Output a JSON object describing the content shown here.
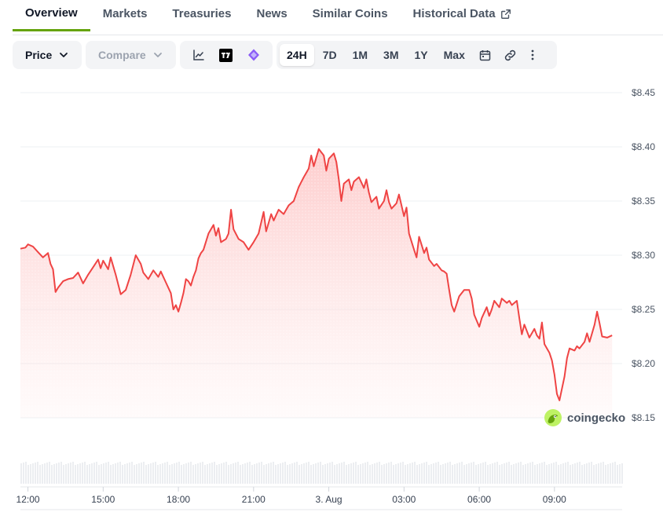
{
  "tabs": [
    "Overview",
    "Markets",
    "Treasuries",
    "News",
    "Similar Coins",
    "Historical Data"
  ],
  "toolbar": {
    "price_label": "Price",
    "compare_label": "Compare",
    "ranges": [
      "24H",
      "7D",
      "1M",
      "3M",
      "1Y",
      "Max"
    ],
    "active_range": "24H"
  },
  "watermark": "coingecko",
  "colors": {
    "line": "#ef4444",
    "area_top": "#fecaca",
    "active_tab_underline": "#65a30d"
  },
  "chart_data": {
    "type": "area",
    "ylim": [
      8.15,
      8.45
    ],
    "yticks": [
      "$8.45",
      "$8.40",
      "$8.35",
      "$8.30",
      "$8.25",
      "$8.20",
      "$8.15"
    ],
    "yvalues": [
      8.45,
      8.4,
      8.35,
      8.3,
      8.25,
      8.2,
      8.15
    ],
    "xticks": [
      "12:00",
      "15:00",
      "18:00",
      "21:00",
      "3. Aug",
      "03:00",
      "06:00",
      "09:00"
    ],
    "x_start_hour": 11.7,
    "x_end_hour": 35.7,
    "points": [
      [
        11.7,
        8.306
      ],
      [
        11.9,
        8.307
      ],
      [
        12.0,
        8.31
      ],
      [
        12.2,
        8.308
      ],
      [
        12.4,
        8.303
      ],
      [
        12.6,
        8.298
      ],
      [
        12.8,
        8.302
      ],
      [
        12.9,
        8.292
      ],
      [
        13.0,
        8.287
      ],
      [
        13.1,
        8.266
      ],
      [
        13.2,
        8.27
      ],
      [
        13.4,
        8.276
      ],
      [
        13.6,
        8.278
      ],
      [
        13.8,
        8.279
      ],
      [
        14.0,
        8.284
      ],
      [
        14.2,
        8.274
      ],
      [
        14.4,
        8.282
      ],
      [
        14.6,
        8.289
      ],
      [
        14.8,
        8.296
      ],
      [
        14.9,
        8.288
      ],
      [
        15.0,
        8.295
      ],
      [
        15.2,
        8.287
      ],
      [
        15.3,
        8.298
      ],
      [
        15.5,
        8.282
      ],
      [
        15.7,
        8.264
      ],
      [
        15.9,
        8.268
      ],
      [
        16.1,
        8.282
      ],
      [
        16.3,
        8.3
      ],
      [
        16.5,
        8.292
      ],
      [
        16.6,
        8.284
      ],
      [
        16.8,
        8.278
      ],
      [
        17.0,
        8.286
      ],
      [
        17.2,
        8.28
      ],
      [
        17.3,
        8.285
      ],
      [
        17.5,
        8.275
      ],
      [
        17.6,
        8.27
      ],
      [
        17.7,
        8.265
      ],
      [
        17.8,
        8.25
      ],
      [
        17.9,
        8.254
      ],
      [
        18.0,
        8.248
      ],
      [
        18.1,
        8.256
      ],
      [
        18.2,
        8.265
      ],
      [
        18.3,
        8.278
      ],
      [
        18.4,
        8.276
      ],
      [
        18.5,
        8.272
      ],
      [
        18.6,
        8.28
      ],
      [
        18.7,
        8.286
      ],
      [
        18.8,
        8.297
      ],
      [
        18.9,
        8.302
      ],
      [
        19.0,
        8.305
      ],
      [
        19.2,
        8.32
      ],
      [
        19.4,
        8.328
      ],
      [
        19.5,
        8.318
      ],
      [
        19.6,
        8.325
      ],
      [
        19.7,
        8.312
      ],
      [
        19.9,
        8.315
      ],
      [
        20.0,
        8.32
      ],
      [
        20.1,
        8.342
      ],
      [
        20.2,
        8.324
      ],
      [
        20.4,
        8.315
      ],
      [
        20.6,
        8.312
      ],
      [
        20.8,
        8.305
      ],
      [
        21.0,
        8.312
      ],
      [
        21.2,
        8.32
      ],
      [
        21.4,
        8.34
      ],
      [
        21.5,
        8.322
      ],
      [
        21.7,
        8.338
      ],
      [
        21.8,
        8.332
      ],
      [
        22.0,
        8.342
      ],
      [
        22.2,
        8.338
      ],
      [
        22.4,
        8.346
      ],
      [
        22.6,
        8.35
      ],
      [
        22.8,
        8.363
      ],
      [
        23.0,
        8.372
      ],
      [
        23.2,
        8.38
      ],
      [
        23.3,
        8.392
      ],
      [
        23.4,
        8.382
      ],
      [
        23.6,
        8.398
      ],
      [
        23.8,
        8.392
      ],
      [
        23.9,
        8.378
      ],
      [
        24.0,
        8.389
      ],
      [
        24.2,
        8.394
      ],
      [
        24.3,
        8.386
      ],
      [
        24.4,
        8.37
      ],
      [
        24.5,
        8.35
      ],
      [
        24.6,
        8.366
      ],
      [
        24.8,
        8.37
      ],
      [
        24.9,
        8.36
      ],
      [
        25.0,
        8.368
      ],
      [
        25.2,
        8.372
      ],
      [
        25.4,
        8.362
      ],
      [
        25.5,
        8.37
      ],
      [
        25.6,
        8.358
      ],
      [
        25.7,
        8.349
      ],
      [
        25.9,
        8.354
      ],
      [
        26.0,
        8.343
      ],
      [
        26.2,
        8.35
      ],
      [
        26.3,
        8.36
      ],
      [
        26.4,
        8.349
      ],
      [
        26.5,
        8.343
      ],
      [
        26.7,
        8.348
      ],
      [
        26.8,
        8.356
      ],
      [
        27.0,
        8.336
      ],
      [
        27.1,
        8.344
      ],
      [
        27.2,
        8.32
      ],
      [
        27.4,
        8.305
      ],
      [
        27.5,
        8.298
      ],
      [
        27.6,
        8.317
      ],
      [
        27.8,
        8.302
      ],
      [
        27.9,
        8.307
      ],
      [
        28.0,
        8.296
      ],
      [
        28.2,
        8.29
      ],
      [
        28.3,
        8.292
      ],
      [
        28.5,
        8.286
      ],
      [
        28.6,
        8.285
      ],
      [
        28.7,
        8.283
      ],
      [
        28.8,
        8.268
      ],
      [
        28.9,
        8.254
      ],
      [
        29.0,
        8.248
      ],
      [
        29.2,
        8.262
      ],
      [
        29.4,
        8.268
      ],
      [
        29.6,
        8.268
      ],
      [
        29.7,
        8.26
      ],
      [
        29.8,
        8.245
      ],
      [
        30.0,
        8.234
      ],
      [
        30.1,
        8.242
      ],
      [
        30.3,
        8.252
      ],
      [
        30.4,
        8.244
      ],
      [
        30.5,
        8.25
      ],
      [
        30.6,
        8.258
      ],
      [
        30.8,
        8.252
      ],
      [
        30.9,
        8.26
      ],
      [
        31.1,
        8.256
      ],
      [
        31.2,
        8.258
      ],
      [
        31.3,
        8.254
      ],
      [
        31.5,
        8.258
      ],
      [
        31.6,
        8.242
      ],
      [
        31.7,
        8.227
      ],
      [
        31.8,
        8.236
      ],
      [
        32.0,
        8.224
      ],
      [
        32.2,
        8.232
      ],
      [
        32.3,
        8.226
      ],
      [
        32.4,
        8.223
      ],
      [
        32.5,
        8.238
      ],
      [
        32.6,
        8.218
      ],
      [
        32.8,
        8.21
      ],
      [
        32.9,
        8.203
      ],
      [
        33.0,
        8.19
      ],
      [
        33.1,
        8.172
      ],
      [
        33.2,
        8.166
      ],
      [
        33.4,
        8.188
      ],
      [
        33.5,
        8.205
      ],
      [
        33.6,
        8.214
      ],
      [
        33.8,
        8.212
      ],
      [
        33.9,
        8.216
      ],
      [
        34.0,
        8.214
      ],
      [
        34.2,
        8.22
      ],
      [
        34.3,
        8.228
      ],
      [
        34.4,
        8.22
      ],
      [
        34.5,
        8.228
      ],
      [
        34.6,
        8.236
      ],
      [
        34.7,
        8.248
      ],
      [
        34.8,
        8.237
      ],
      [
        34.9,
        8.225
      ],
      [
        35.1,
        8.224
      ],
      [
        35.3,
        8.226
      ]
    ]
  }
}
